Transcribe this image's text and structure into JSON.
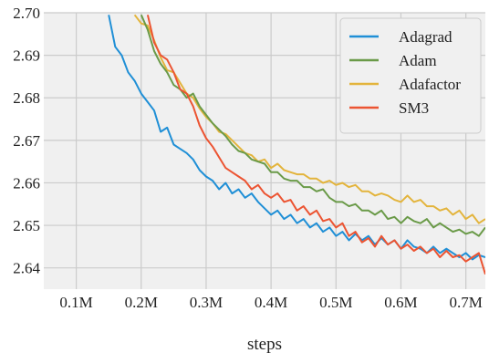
{
  "chart_data": {
    "type": "line",
    "title": "",
    "xlabel": "steps",
    "ylabel": "",
    "xlim": [
      0.05,
      0.73
    ],
    "ylim": [
      2.635,
      2.7
    ],
    "xticks": [
      0.1,
      0.2,
      0.3,
      0.4,
      0.5,
      0.6,
      0.7
    ],
    "xtick_labels": [
      "0.1M",
      "0.2M",
      "0.3M",
      "0.4M",
      "0.5M",
      "0.6M",
      "0.7M"
    ],
    "yticks": [
      2.64,
      2.65,
      2.66,
      2.67,
      2.68,
      2.69,
      2.7
    ],
    "ytick_labels": [
      "2.64",
      "2.65",
      "2.66",
      "2.67",
      "2.68",
      "2.69",
      "2.70"
    ],
    "grid": true,
    "legend_position": "top-right",
    "background": "#f0f0f0",
    "series": [
      {
        "name": "Adagrad",
        "color": "#1f8fd6",
        "x": [
          0.15,
          0.16,
          0.17,
          0.18,
          0.19,
          0.2,
          0.21,
          0.22,
          0.23,
          0.24,
          0.25,
          0.26,
          0.27,
          0.28,
          0.29,
          0.3,
          0.31,
          0.32,
          0.33,
          0.34,
          0.35,
          0.36,
          0.37,
          0.38,
          0.39,
          0.4,
          0.41,
          0.42,
          0.43,
          0.44,
          0.45,
          0.46,
          0.47,
          0.48,
          0.49,
          0.5,
          0.51,
          0.52,
          0.53,
          0.54,
          0.55,
          0.56,
          0.57,
          0.58,
          0.59,
          0.6,
          0.61,
          0.62,
          0.63,
          0.64,
          0.65,
          0.66,
          0.67,
          0.68,
          0.69,
          0.7,
          0.71,
          0.72,
          0.73
        ],
        "y": [
          2.6995,
          2.692,
          2.69,
          2.686,
          2.684,
          2.681,
          2.679,
          2.677,
          2.672,
          2.673,
          2.669,
          2.668,
          2.667,
          2.6655,
          2.663,
          2.6615,
          2.6605,
          2.6585,
          2.66,
          2.6575,
          2.6585,
          2.6565,
          2.6575,
          2.6555,
          2.654,
          2.6525,
          2.6535,
          2.6515,
          2.6525,
          2.6505,
          2.6515,
          2.6495,
          2.6505,
          2.6485,
          2.6495,
          2.6475,
          2.6485,
          2.6465,
          2.648,
          2.6465,
          2.6475,
          2.6455,
          2.647,
          2.6455,
          2.6465,
          2.6445,
          2.6465,
          2.645,
          2.6445,
          2.6435,
          2.645,
          2.6435,
          2.6445,
          2.6435,
          2.6425,
          2.6435,
          2.642,
          2.643,
          2.6425
        ]
      },
      {
        "name": "Adam",
        "color": "#6a9a48",
        "x": [
          0.2,
          0.21,
          0.22,
          0.23,
          0.24,
          0.25,
          0.26,
          0.27,
          0.28,
          0.29,
          0.3,
          0.31,
          0.32,
          0.33,
          0.34,
          0.35,
          0.36,
          0.37,
          0.38,
          0.39,
          0.4,
          0.41,
          0.42,
          0.43,
          0.44,
          0.45,
          0.46,
          0.47,
          0.48,
          0.49,
          0.5,
          0.51,
          0.52,
          0.53,
          0.54,
          0.55,
          0.56,
          0.57,
          0.58,
          0.59,
          0.6,
          0.61,
          0.62,
          0.63,
          0.64,
          0.65,
          0.66,
          0.67,
          0.68,
          0.69,
          0.7,
          0.71,
          0.72,
          0.73
        ],
        "y": [
          2.6995,
          2.696,
          2.691,
          2.688,
          2.686,
          2.683,
          2.682,
          2.68,
          2.681,
          2.678,
          2.676,
          2.674,
          2.6725,
          2.671,
          2.669,
          2.6675,
          2.667,
          2.6655,
          2.665,
          2.6645,
          2.6625,
          2.6625,
          2.661,
          2.6605,
          2.6605,
          2.659,
          2.659,
          2.658,
          2.6585,
          2.6565,
          2.6555,
          2.6555,
          2.6545,
          2.655,
          2.6535,
          2.6535,
          2.6525,
          2.6535,
          2.6515,
          2.652,
          2.6505,
          2.652,
          2.651,
          2.6505,
          2.6515,
          2.6495,
          2.6505,
          2.6495,
          2.6485,
          2.649,
          2.648,
          2.6485,
          2.6475,
          2.6495
        ]
      },
      {
        "name": "Adafactor",
        "color": "#e3b43c",
        "x": [
          0.19,
          0.2,
          0.21,
          0.22,
          0.23,
          0.24,
          0.25,
          0.26,
          0.27,
          0.28,
          0.29,
          0.3,
          0.31,
          0.32,
          0.33,
          0.34,
          0.35,
          0.36,
          0.37,
          0.38,
          0.39,
          0.4,
          0.41,
          0.42,
          0.43,
          0.44,
          0.45,
          0.46,
          0.47,
          0.48,
          0.49,
          0.5,
          0.51,
          0.52,
          0.53,
          0.54,
          0.55,
          0.56,
          0.57,
          0.58,
          0.59,
          0.6,
          0.61,
          0.62,
          0.63,
          0.64,
          0.65,
          0.66,
          0.67,
          0.68,
          0.69,
          0.7,
          0.71,
          0.72,
          0.73
        ],
        "y": [
          2.6995,
          2.6975,
          2.697,
          2.6935,
          2.6895,
          2.6865,
          2.686,
          2.6835,
          2.681,
          2.68,
          2.6775,
          2.6755,
          2.674,
          2.672,
          2.6715,
          2.67,
          2.6685,
          2.667,
          2.6665,
          2.665,
          2.6655,
          2.6635,
          2.6645,
          2.663,
          2.6625,
          2.662,
          2.662,
          2.661,
          2.661,
          2.66,
          2.6605,
          2.6595,
          2.66,
          2.659,
          2.6595,
          2.658,
          2.658,
          2.657,
          2.6575,
          2.657,
          2.656,
          2.6555,
          2.657,
          2.6555,
          2.656,
          2.6545,
          2.6545,
          2.6535,
          2.654,
          2.6525,
          2.6535,
          2.6515,
          2.6525,
          2.6505,
          2.6515
        ]
      },
      {
        "name": "SM3",
        "color": "#ec5432",
        "x": [
          0.21,
          0.22,
          0.23,
          0.24,
          0.25,
          0.26,
          0.27,
          0.28,
          0.29,
          0.3,
          0.31,
          0.32,
          0.33,
          0.34,
          0.35,
          0.36,
          0.37,
          0.38,
          0.39,
          0.4,
          0.41,
          0.42,
          0.43,
          0.44,
          0.45,
          0.46,
          0.47,
          0.48,
          0.49,
          0.5,
          0.51,
          0.52,
          0.53,
          0.54,
          0.55,
          0.56,
          0.57,
          0.58,
          0.59,
          0.6,
          0.61,
          0.62,
          0.63,
          0.64,
          0.65,
          0.66,
          0.67,
          0.68,
          0.69,
          0.7,
          0.71,
          0.72,
          0.73
        ],
        "y": [
          2.6995,
          2.693,
          2.69,
          2.689,
          2.686,
          2.682,
          2.681,
          2.678,
          2.6735,
          2.6705,
          2.6685,
          2.666,
          2.6635,
          2.6625,
          2.6615,
          2.6605,
          2.6585,
          2.6595,
          2.6575,
          2.6565,
          2.6575,
          2.6555,
          2.656,
          2.6535,
          2.6545,
          2.6525,
          2.6535,
          2.651,
          2.6515,
          2.6495,
          2.6505,
          2.6475,
          2.6485,
          2.646,
          2.647,
          2.645,
          2.6475,
          2.6455,
          2.6465,
          2.6445,
          2.6455,
          2.644,
          2.645,
          2.6435,
          2.6445,
          2.6425,
          2.644,
          2.6425,
          2.643,
          2.6415,
          2.6425,
          2.6435,
          2.6385
        ]
      }
    ]
  }
}
